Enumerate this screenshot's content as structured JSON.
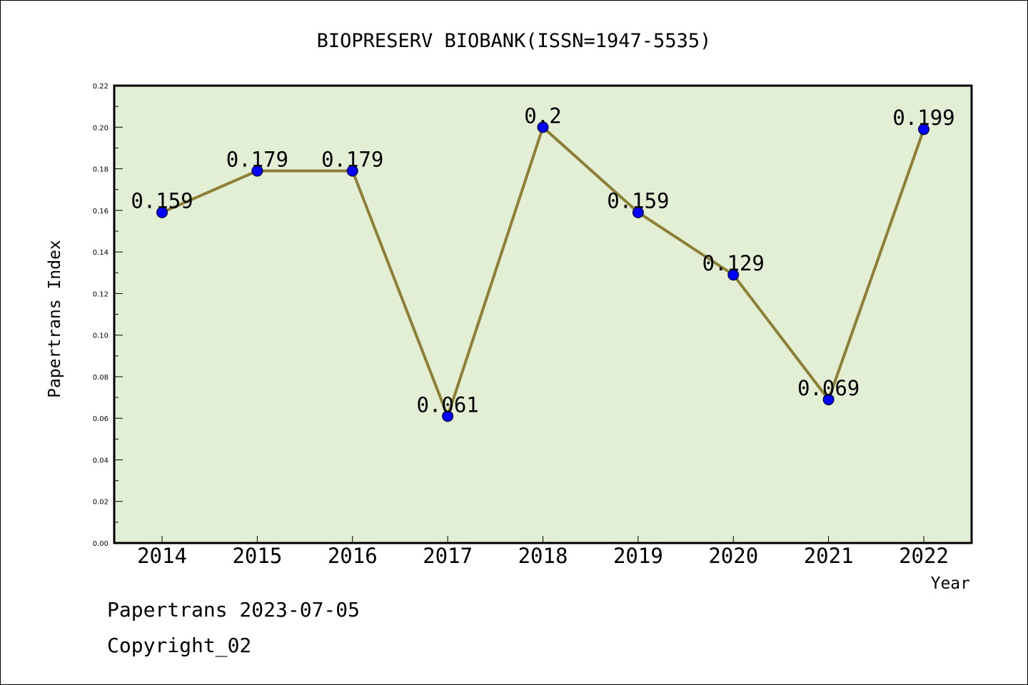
{
  "chart_data": {
    "type": "line",
    "title": "BIOPRESERV BIOBANK(ISSN=1947-5535)",
    "xlabel": "Year",
    "ylabel": "Papertrans Index",
    "categories": [
      "2014",
      "2015",
      "2016",
      "2017",
      "2018",
      "2019",
      "2020",
      "2021",
      "2022"
    ],
    "series": [
      {
        "values": [
          0.159,
          0.179,
          0.179,
          0.061,
          0.2,
          0.159,
          0.129,
          0.069,
          0.199
        ],
        "labels": [
          "0.159",
          "0.179",
          "0.179",
          "0.061",
          "0.2",
          "0.159",
          "0.129",
          "0.069",
          "0.199"
        ]
      }
    ],
    "ylim": [
      0,
      0.22
    ],
    "yticks": [
      "0.00",
      "0.02",
      "0.04",
      "0.06",
      "0.08",
      "0.10",
      "0.12",
      "0.14",
      "0.16",
      "0.18",
      "0.20",
      "0.22"
    ],
    "grid": false,
    "legend": "none"
  },
  "footer": {
    "line1": "Papertrans 2023-07-05",
    "line2": "Copyright_02"
  },
  "colors": {
    "plot_background": "#e2efd5",
    "line": "#8c7f36",
    "marker": "#0000ff"
  }
}
